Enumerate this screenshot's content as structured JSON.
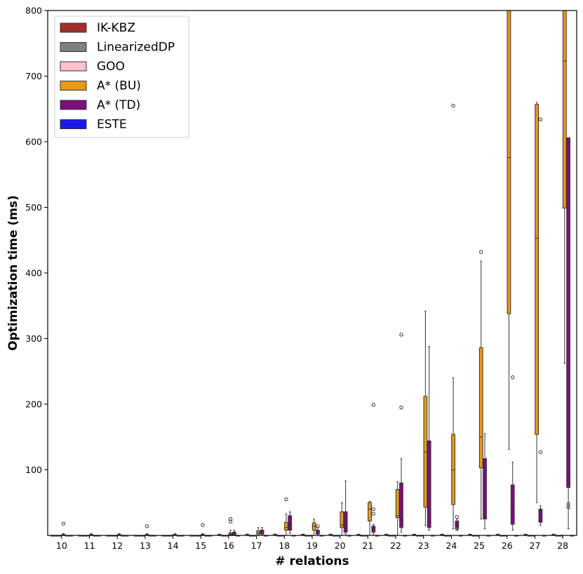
{
  "chart_data": {
    "type": "boxplot",
    "xlabel": "# relations",
    "ylabel": "Optimization time (ms)",
    "ylim": [
      0,
      800
    ],
    "yticks": [
      100,
      200,
      300,
      400,
      500,
      600,
      700,
      800
    ],
    "categories": [
      "10",
      "11",
      "12",
      "13",
      "14",
      "15",
      "16",
      "17",
      "18",
      "19",
      "20",
      "21",
      "22",
      "23",
      "24",
      "25",
      "26",
      "27",
      "28"
    ],
    "legend": {
      "placement": "top-left"
    },
    "series": [
      {
        "name": "IK-KBZ",
        "color": "#a0302b",
        "boxes": [
          [
            0,
            0,
            0,
            0,
            0
          ],
          [
            0,
            0,
            0,
            0,
            0
          ],
          [
            0,
            0,
            0,
            0,
            0
          ],
          [
            0,
            0,
            0,
            0,
            0
          ],
          [
            0,
            0,
            0,
            0,
            0
          ],
          [
            0,
            0,
            0,
            0,
            0
          ],
          [
            0,
            0.5,
            1,
            1.5,
            2
          ],
          [
            0,
            0.5,
            1,
            1.5,
            2
          ],
          [
            0,
            0.5,
            1,
            1.5,
            2
          ],
          [
            0,
            0.5,
            1,
            1.5,
            2
          ],
          [
            0,
            0.5,
            1,
            1.5,
            2
          ],
          [
            0,
            0.5,
            1,
            1.5,
            2
          ],
          [
            0,
            0.5,
            1,
            1.5,
            2
          ],
          [
            0,
            0.5,
            1,
            1.5,
            2
          ],
          [
            0,
            0.5,
            1,
            1.5,
            2
          ],
          [
            0,
            0.5,
            1,
            1.5,
            2
          ],
          [
            0,
            0.5,
            1,
            1.5,
            2
          ],
          [
            0,
            0.5,
            1,
            1.5,
            2
          ],
          [
            0,
            0.5,
            1,
            1.5,
            2
          ]
        ],
        "outliers": [
          [],
          [],
          [],
          [],
          [],
          [],
          [],
          [],
          [],
          [],
          [],
          [],
          [],
          [],
          [],
          [],
          [],
          [],
          []
        ]
      },
      {
        "name": "LinearizedDP",
        "color": "#808080",
        "boxes": [
          [
            0,
            0,
            0,
            0,
            0
          ],
          [
            0,
            0,
            0,
            0,
            0
          ],
          [
            0,
            0,
            0,
            0,
            0
          ],
          [
            0,
            0,
            0,
            0,
            0
          ],
          [
            0,
            0,
            0,
            0,
            0
          ],
          [
            0,
            0,
            0,
            0,
            0
          ],
          [
            0,
            0,
            0,
            0,
            0
          ],
          [
            0,
            0,
            0,
            0,
            0
          ],
          [
            0,
            0,
            0,
            0,
            0
          ],
          [
            0,
            0,
            0,
            0,
            0
          ],
          [
            0,
            0,
            0,
            0,
            0
          ],
          [
            0,
            0,
            0,
            0,
            0
          ],
          [
            0,
            0,
            0,
            0,
            0
          ],
          [
            0,
            0,
            0,
            0,
            0
          ],
          [
            0,
            0,
            0,
            0,
            0
          ],
          [
            0,
            0,
            0,
            0,
            0
          ],
          [
            0,
            0,
            0,
            0,
            0
          ],
          [
            0,
            0,
            0,
            0,
            0
          ],
          [
            0,
            0,
            0,
            0,
            0
          ]
        ],
        "outliers": [
          [],
          [],
          [],
          [],
          [],
          [],
          [],
          [],
          [],
          [],
          [],
          [],
          [],
          [],
          [],
          [],
          [],
          [],
          []
        ]
      },
      {
        "name": "GOO",
        "color": "#ffc0cb",
        "boxes": [
          [
            0,
            0,
            0,
            0,
            0
          ],
          [
            0,
            0,
            0,
            0,
            0
          ],
          [
            0,
            0,
            0,
            0,
            0
          ],
          [
            0,
            0,
            0,
            0,
            0
          ],
          [
            0,
            0,
            0,
            0,
            0
          ],
          [
            0,
            0,
            0,
            0,
            0
          ],
          [
            0,
            0,
            0,
            0,
            0
          ],
          [
            0,
            0,
            0,
            0,
            0
          ],
          [
            0,
            0,
            0,
            0,
            0
          ],
          [
            0,
            0,
            0,
            0,
            0
          ],
          [
            0,
            0,
            0,
            0,
            0
          ],
          [
            0,
            0,
            0,
            0,
            0
          ],
          [
            0,
            0,
            0,
            0,
            0
          ],
          [
            0,
            0,
            0,
            0,
            0
          ],
          [
            0,
            0,
            0,
            0,
            0
          ],
          [
            0,
            0,
            0,
            0,
            0
          ],
          [
            0,
            0,
            0,
            0,
            0
          ],
          [
            0,
            0,
            0,
            0,
            0
          ],
          [
            0,
            0,
            0,
            0,
            0
          ]
        ],
        "outliers": [
          [],
          [],
          [],
          [],
          [],
          [],
          [],
          [],
          [],
          [],
          [],
          [],
          [],
          [],
          [],
          [],
          [],
          [],
          []
        ]
      },
      {
        "name": "A* (BU)",
        "color": "#e69a1a",
        "boxes": [
          [
            0,
            0.5,
            1,
            1.5,
            3
          ],
          [
            0,
            0.5,
            1,
            1.5,
            3
          ],
          [
            0,
            0.5,
            1,
            1.5,
            3
          ],
          [
            0,
            0.5,
            1,
            1.5,
            3
          ],
          [
            0,
            0.5,
            1,
            1.5,
            3
          ],
          [
            0,
            0.5,
            1,
            1.5,
            3
          ],
          [
            0,
            1,
            2,
            4,
            8
          ],
          [
            0,
            2,
            4,
            7,
            12
          ],
          [
            0,
            8,
            12,
            20,
            33
          ],
          [
            0,
            8,
            14,
            19,
            25
          ],
          [
            0,
            12,
            16,
            36,
            50
          ],
          [
            0,
            22,
            40,
            50,
            52
          ],
          [
            0,
            27,
            30,
            70,
            82
          ],
          [
            15,
            43,
            127,
            212,
            342
          ],
          [
            10,
            47,
            100,
            154,
            240
          ],
          [
            25,
            103,
            150,
            286,
            418
          ],
          [
            131,
            338,
            576,
            800,
            800
          ],
          [
            50,
            154,
            453,
            657,
            660
          ],
          [
            262,
            499,
            723,
            800,
            800
          ]
        ],
        "outliers": [
          [
            18
          ],
          [],
          [],
          [
            14
          ],
          [],
          [
            16
          ],
          [
            21,
            25
          ],
          [],
          [
            55
          ],
          [],
          [],
          [],
          [],
          [],
          [
            655
          ],
          [
            432
          ],
          [],
          [],
          []
        ]
      },
      {
        "name": "A* (TD)",
        "color": "#7a107a",
        "boxes": [
          [
            0,
            0,
            0,
            0,
            0
          ],
          [
            0,
            0,
            0,
            0,
            0
          ],
          [
            0,
            0,
            0,
            0,
            0
          ],
          [
            0,
            0,
            0,
            0,
            0
          ],
          [
            0,
            0,
            0,
            0,
            0
          ],
          [
            0,
            0,
            0,
            0,
            0
          ],
          [
            0,
            1,
            2,
            5,
            8
          ],
          [
            0,
            2,
            5,
            8,
            12
          ],
          [
            3,
            8,
            20,
            30,
            36
          ],
          [
            0,
            2,
            5,
            8,
            12
          ],
          [
            2,
            5,
            15,
            36,
            83
          ],
          [
            2,
            5,
            10,
            14,
            17
          ],
          [
            5,
            12,
            20,
            80,
            117
          ],
          [
            8,
            12,
            40,
            144,
            288
          ],
          [
            8,
            12,
            18,
            22,
            25
          ],
          [
            10,
            25,
            40,
            117,
            155
          ],
          [
            8,
            17,
            40,
            77,
            112
          ],
          [
            15,
            20,
            30,
            40,
            45
          ],
          [
            10,
            73,
            90,
            606,
            606
          ]
        ],
        "outliers": [
          [],
          [],
          [],
          [],
          [],
          [],
          [],
          [],
          [],
          [],
          [],
          [],
          [],
          [],
          [],
          [],
          [],
          [],
          []
        ]
      },
      {
        "name": "ESTE",
        "color": "#1a1ae6",
        "boxes": [
          [
            0,
            0,
            0,
            0,
            0
          ],
          [
            0,
            0,
            0,
            0,
            0
          ],
          [
            0,
            0,
            0,
            0,
            0
          ],
          [
            0,
            0,
            0,
            0,
            0
          ],
          [
            0,
            0,
            0,
            0,
            0
          ],
          [
            0,
            0,
            0,
            0,
            0
          ],
          [
            0,
            0,
            0,
            0,
            0
          ],
          [
            0,
            0,
            0,
            0,
            0
          ],
          [
            0,
            0,
            0,
            0,
            0
          ],
          [
            0,
            0,
            0,
            0,
            0
          ],
          [
            0,
            0,
            0,
            0,
            0
          ],
          [
            0,
            0,
            0,
            0,
            0
          ],
          [
            0,
            0,
            0,
            0,
            0
          ],
          [
            0,
            0,
            0,
            0,
            0
          ],
          [
            0,
            0,
            0,
            0,
            0
          ],
          [
            0,
            0,
            0,
            0,
            0
          ],
          [
            0,
            0,
            0,
            0,
            0
          ],
          [
            0,
            0,
            0,
            0,
            0
          ],
          [
            0,
            0,
            0,
            0,
            0
          ]
        ],
        "outliers": [
          [],
          [],
          [],
          [],
          [],
          [],
          [],
          [],
          [],
          [],
          [],
          [],
          [],
          [],
          [],
          [],
          [],
          [],
          []
        ]
      }
    ],
    "extra_points": [
      {
        "category": "21",
        "series": "A* (TD)",
        "values": [
          199,
          40,
          33
        ]
      },
      {
        "category": "22",
        "series": "A* (TD)",
        "values": [
          306,
          195,
          22
        ]
      },
      {
        "category": "24",
        "series": "A* (TD)",
        "values": [
          10,
          12,
          28
        ]
      },
      {
        "category": "25",
        "series": "A* (TD)",
        "values": [
          30
        ]
      },
      {
        "category": "26",
        "series": "A* (TD)",
        "values": [
          241,
          35
        ]
      },
      {
        "category": "27",
        "series": "A* (TD)",
        "values": [
          634,
          127,
          38
        ]
      },
      {
        "category": "28",
        "series": "A* (TD)",
        "values": [
          48,
          43
        ]
      },
      {
        "category": "18",
        "series": "A* (TD)",
        "values": [
          13
        ]
      },
      {
        "category": "19",
        "series": "A* (TD)",
        "values": [
          14
        ]
      },
      {
        "category": "20",
        "series": "A* (TD)",
        "values": [
          16
        ]
      },
      {
        "category": "23",
        "series": "A* (TD)",
        "values": [
          26
        ]
      }
    ]
  }
}
